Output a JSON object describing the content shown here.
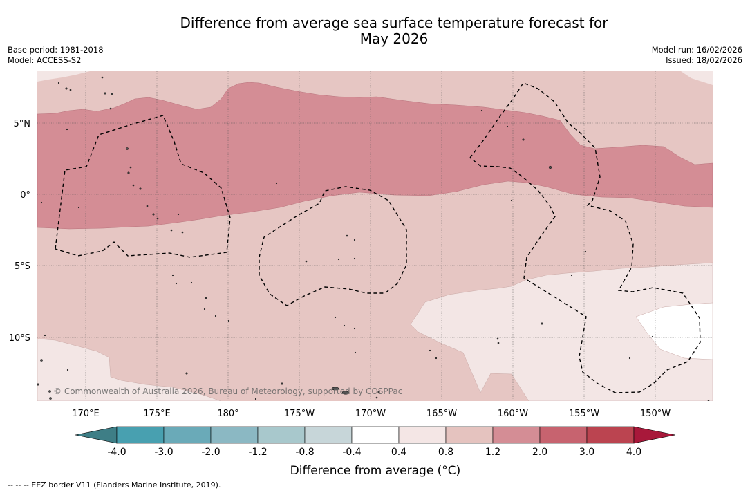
{
  "title": {
    "line1": "Difference from average sea surface temperature forecast for",
    "line2": "May 2026"
  },
  "meta": {
    "base_period": "Base period: 1981-2018",
    "model": "Model: ACCESS-S2",
    "model_run": "Model run: 16/02/2026",
    "issued": "Issued: 18/02/2026"
  },
  "map": {
    "lat_labels": [
      "5°N",
      "0°",
      "5°S",
      "10°S"
    ],
    "lon_labels": [
      "170°E",
      "175°E",
      "180°",
      "175°W",
      "170°W",
      "165°W",
      "160°W",
      "155°W",
      "150°W"
    ],
    "copyright": "© Commonwealth of Australia 2026, Bureau of Meteorology, supported by COSPPac",
    "colors": {
      "anom_0_4_0_8": "#f3e6e5",
      "anom_0_8_1_2": "#e6c6c3",
      "anom_1_2_2_0": "#d48d95",
      "below_0_4": "#ffffff"
    }
  },
  "colorbar": {
    "tick_labels": [
      "-4.0",
      "-3.0",
      "-2.0",
      "-1.2",
      "-0.8",
      "-0.4",
      "0.4",
      "0.8",
      "1.2",
      "2.0",
      "3.0",
      "4.0"
    ],
    "colors": [
      "#48a0b0",
      "#6aaab8",
      "#8bb8c3",
      "#a8c8cc",
      "#c7d6d9",
      "#ffffff",
      "#f4e6e5",
      "#e5c3bf",
      "#d48d95",
      "#c7636f",
      "#bb4450"
    ],
    "low_extend_color": "#3e7e86",
    "high_extend_color": "#a8183a",
    "label": "Difference from average (°C)"
  },
  "footnote": "--  --  -- EEZ border V11 (Flanders Marine Institute, 2019)."
}
